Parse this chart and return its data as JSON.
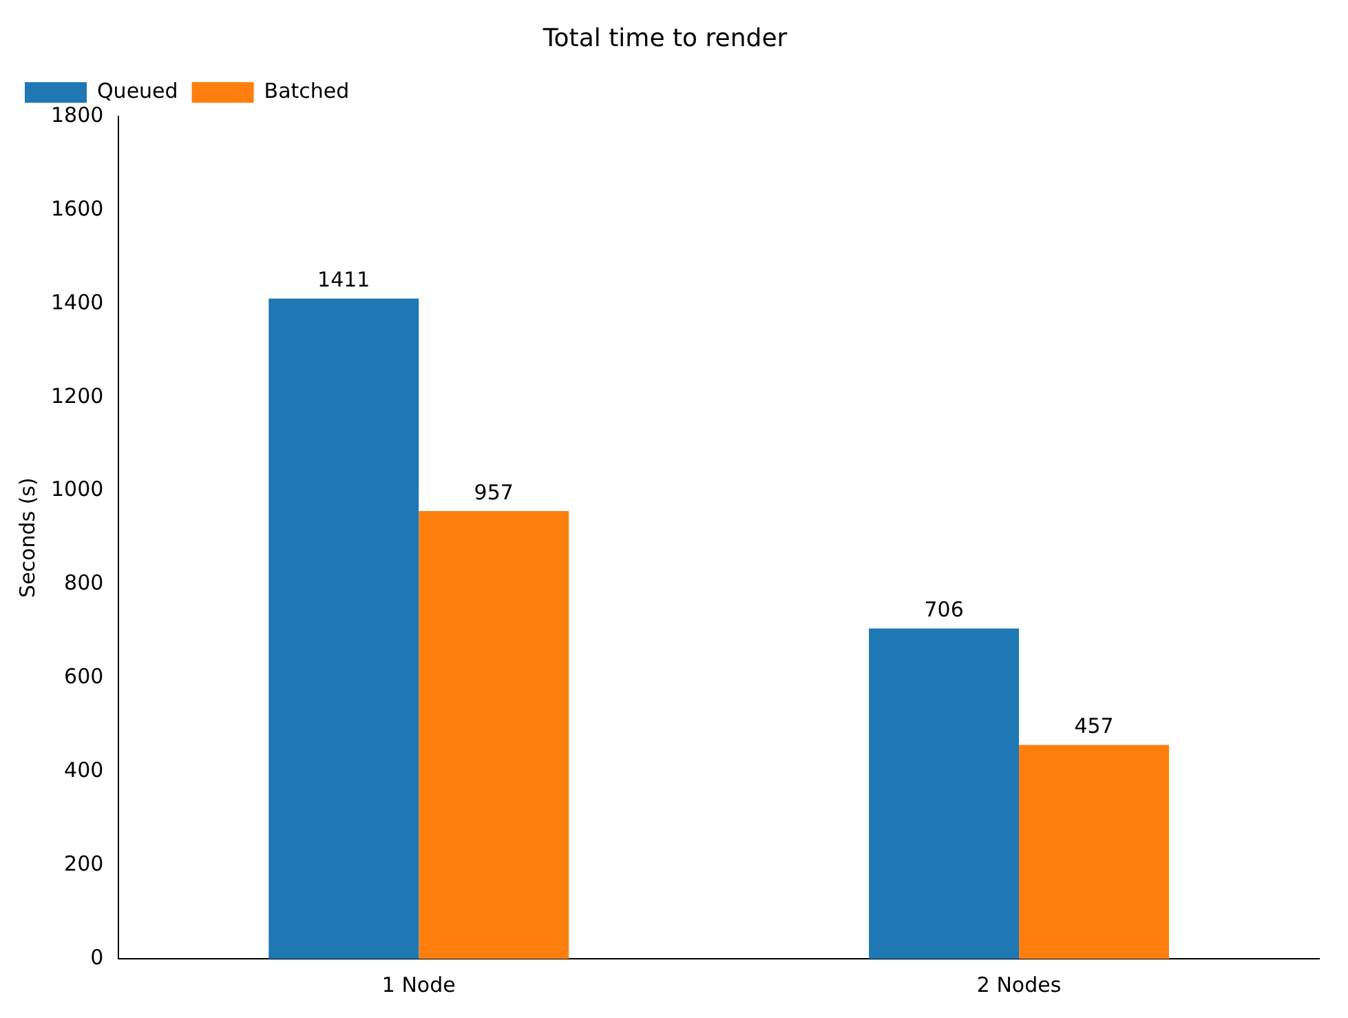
{
  "chart_data": {
    "type": "bar",
    "title": "Total time to render",
    "ylabel": "Seconds (s)",
    "categories": [
      "1 Node",
      "2 Nodes"
    ],
    "series": [
      {
        "name": "Queued",
        "color": "#1f77b4",
        "values": [
          1411,
          706
        ]
      },
      {
        "name": "Batched",
        "color": "#ff7f0e",
        "values": [
          957,
          457
        ]
      }
    ],
    "ylim": [
      0,
      1800
    ],
    "yticks": [
      0,
      200,
      400,
      600,
      800,
      1000,
      1200,
      1400,
      1600,
      1800
    ],
    "grid": false,
    "legend": "top left",
    "data_labels": true
  }
}
